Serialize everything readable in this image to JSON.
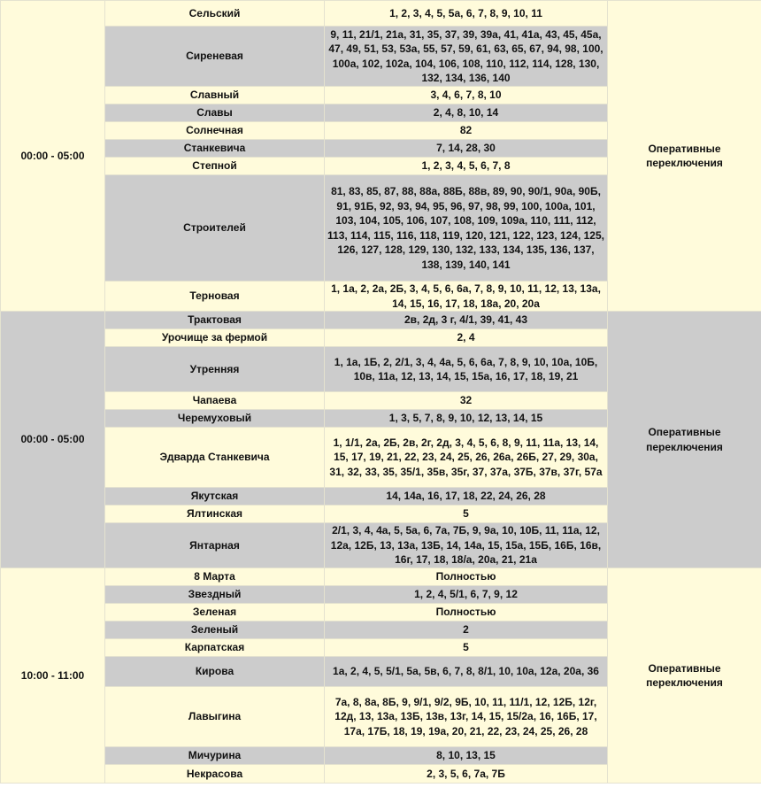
{
  "colors": {
    "cream": "#fffbdb",
    "gray": "#cccccc"
  },
  "groups": [
    {
      "time": "00:00 - 05:00",
      "status": "Оперативные переключения",
      "rows": [
        {
          "street": "Сельский",
          "houses": "1, 2, 3, 4, 5, 5а, 6, 7, 8, 9, 10, 11"
        },
        {
          "street": "Сиреневая",
          "houses": "9, 11, 21/1, 21а, 31, 35, 37, 39, 39а, 41, 41а, 43, 45, 45а, 47, 49, 51, 53, 53а, 55, 57, 59, 61, 63, 65, 67, 94, 98, 100, 100а, 102, 102а, 104, 106, 108, 110, 112, 114, 128, 130, 132, 134, 136, 140"
        },
        {
          "street": "Славный",
          "houses": "3, 4, 6, 7, 8, 10"
        },
        {
          "street": "Славы",
          "houses": "2, 4, 8, 10, 14"
        },
        {
          "street": "Солнечная",
          "houses": "82"
        },
        {
          "street": "Станкевича",
          "houses": "7, 14, 28, 30"
        },
        {
          "street": "Степной",
          "houses": "1, 2, 3, 4, 5, 6, 7, 8"
        },
        {
          "street": "Строителей",
          "houses": "81, 83, 85, 87, 88, 88а, 88Б, 88в, 89, 90, 90/1, 90а, 90Б, 91, 91Б, 92, 93, 94, 95, 96, 97, 98, 99, 100, 100а, 101, 103, 104, 105, 106, 107, 108, 109, 109а, 110, 111, 112, 113, 114, 115, 116, 118, 119, 120, 121, 122, 123, 124, 125, 126, 127, 128, 129, 130, 132, 133, 134, 135, 136, 137, 138, 139, 140, 141"
        },
        {
          "street": "Терновая",
          "houses": "1, 1а, 2, 2а, 2Б, 3, 4, 5, 6, 6а, 7, 8, 9, 10, 11, 12, 13, 13а, 14, 15, 16, 17, 18, 18а, 20, 20а"
        }
      ]
    },
    {
      "time": "00:00 - 05:00",
      "status": "Оперативные переключения",
      "rows": [
        {
          "street": "Трактовая",
          "houses": "2в, 2д, 3 г, 4/1, 39, 41, 43"
        },
        {
          "street": "Урочище за фермой",
          "houses": "2, 4"
        },
        {
          "street": "Утренняя",
          "houses": "1, 1а, 1Б, 2, 2/1, 3, 4, 4а, 5, 6, 6а, 7, 8, 9, 10, 10а, 10Б, 10в, 11а, 12, 13, 14, 15, 15а, 16, 17, 18, 19, 21"
        },
        {
          "street": "Чапаева",
          "houses": "32"
        },
        {
          "street": "Черемуховый",
          "houses": "1, 3, 5, 7, 8, 9, 10, 12, 13, 14, 15"
        },
        {
          "street": "Эдварда Станкевича",
          "houses": "1, 1/1, 2а, 2Б, 2в, 2г, 2д, 3, 4, 5, 6, 8, 9, 11, 11а, 13, 14, 15, 17, 19, 21, 22, 23, 24, 25, 26, 26а, 26Б, 27, 29, 30а, 31, 32, 33, 35, 35/1, 35в, 35г, 37, 37а, 37Б, 37в, 37г, 57а"
        },
        {
          "street": "Якутская",
          "houses": "14, 14а, 16, 17, 18, 22, 24, 26, 28"
        },
        {
          "street": "Ялтинская",
          "houses": "5"
        },
        {
          "street": "Янтарная",
          "houses": "2/1, 3, 4, 4а, 5, 5а, 6, 7а, 7Б, 9, 9а, 10, 10Б, 11, 11а, 12, 12а, 12Б, 13, 13а, 13Б, 14, 14а, 15, 15а, 15Б, 16Б, 16в, 16г, 17, 18, 18/а, 20а, 21, 21а"
        }
      ]
    },
    {
      "time": "10:00 - 11:00",
      "status": "Оперативные переключения",
      "rows": [
        {
          "street": "8 Марта",
          "houses": "Полностью"
        },
        {
          "street": "Звездный",
          "houses": "1, 2, 4, 5/1, 6, 7, 9, 12"
        },
        {
          "street": "Зеленая",
          "houses": "Полностью"
        },
        {
          "street": "Зеленый",
          "houses": "2"
        },
        {
          "street": "Карпатская",
          "houses": "5"
        },
        {
          "street": "Кирова",
          "houses": "1а, 2, 4, 5, 5/1, 5а, 5в, 6, 7, 8, 8/1, 10, 10а, 12а, 20а, 36"
        },
        {
          "street": "Лавыгина",
          "houses": "7а, 8, 8а, 8Б, 9, 9/1, 9/2, 9Б, 10, 11, 11/1, 12, 12Б, 12г, 12д, 13, 13а, 13Б, 13в, 13г, 14, 15, 15/2а, 16, 16Б, 17, 17а, 17Б, 18, 19, 19а, 20, 21, 22, 23, 24, 25, 26, 28"
        },
        {
          "street": "Мичурина",
          "houses": "8, 10, 13, 15"
        },
        {
          "street": "Некрасова",
          "houses": "2, 3, 5, 6, 7а, 7Б"
        }
      ]
    }
  ]
}
